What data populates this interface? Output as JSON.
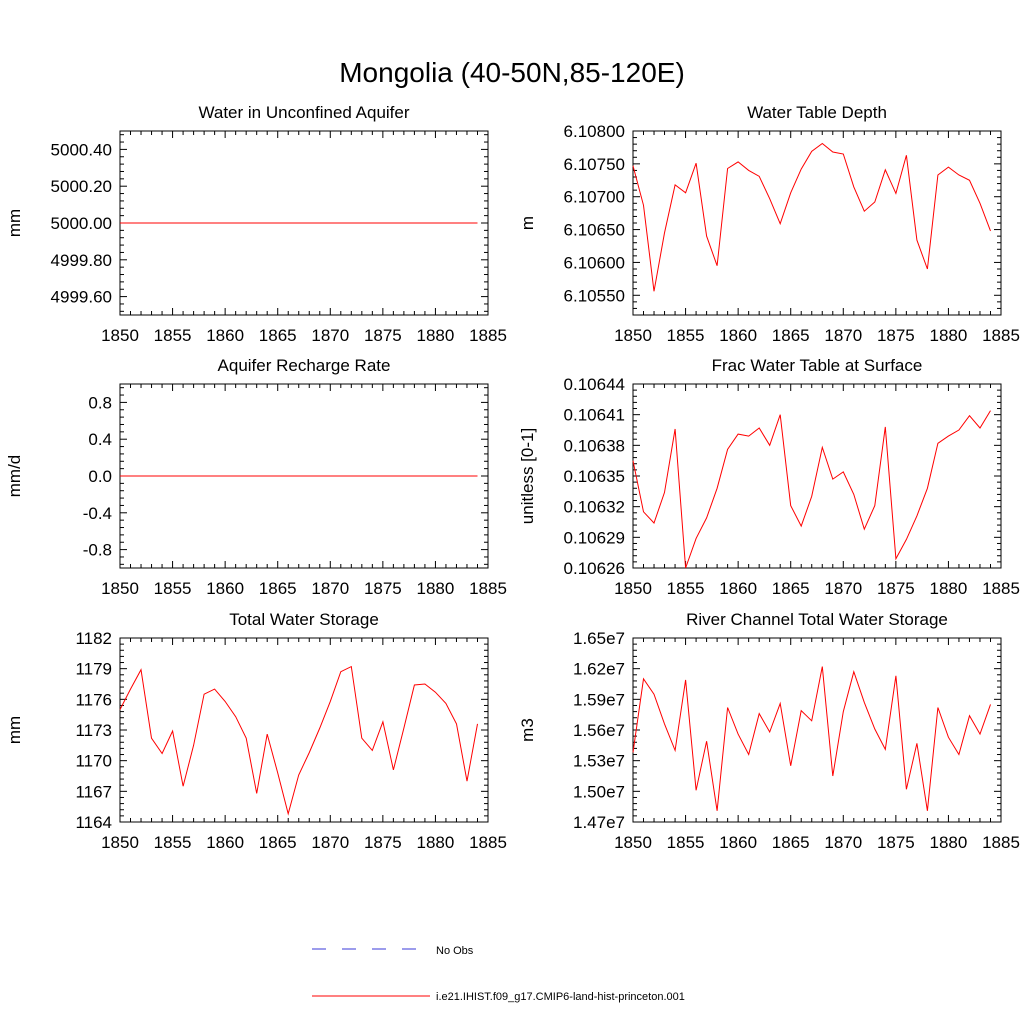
{
  "figure_title": "Mongolia (40-50N,85-120E)",
  "colors": {
    "model": "#ff0000",
    "obs": "#3a3ad8",
    "axis": "#000000"
  },
  "legend": {
    "obs_label": "No Obs",
    "model_label": "i.e21.IHIST.f09_g17.CMIP6-land-hist-princeton.001"
  },
  "chart_data": [
    {
      "type": "line",
      "title": "Water in Unconfined Aquifer",
      "ylabel": "mm",
      "xlim": [
        1850,
        1885
      ],
      "ylim": [
        4999.5,
        5000.5
      ],
      "xticks": [
        1850,
        1855,
        1860,
        1865,
        1870,
        1875,
        1880,
        1885
      ],
      "yticks": [
        4999.6,
        4999.8,
        5000.0,
        5000.2,
        5000.4
      ],
      "ytick_labels": [
        "4999.60",
        "4999.80",
        "5000.00",
        "5000.20",
        "5000.40"
      ],
      "x": [
        1850,
        1851,
        1852,
        1853,
        1854,
        1855,
        1856,
        1857,
        1858,
        1859,
        1860,
        1861,
        1862,
        1863,
        1864,
        1865,
        1866,
        1867,
        1868,
        1869,
        1870,
        1871,
        1872,
        1873,
        1874,
        1875,
        1876,
        1877,
        1878,
        1879,
        1880,
        1881,
        1882,
        1883,
        1884
      ],
      "values": [
        5000,
        5000,
        5000,
        5000,
        5000,
        5000,
        5000,
        5000,
        5000,
        5000,
        5000,
        5000,
        5000,
        5000,
        5000,
        5000,
        5000,
        5000,
        5000,
        5000,
        5000,
        5000,
        5000,
        5000,
        5000,
        5000,
        5000,
        5000,
        5000,
        5000,
        5000,
        5000,
        5000,
        5000,
        5000
      ]
    },
    {
      "type": "line",
      "title": "Water Table Depth",
      "ylabel": "m",
      "xlim": [
        1850,
        1885
      ],
      "ylim": [
        6.1052,
        6.108
      ],
      "xticks": [
        1850,
        1855,
        1860,
        1865,
        1870,
        1875,
        1880,
        1885
      ],
      "yticks": [
        6.1055,
        6.106,
        6.1065,
        6.107,
        6.1075,
        6.108
      ],
      "ytick_labels": [
        "6.10550",
        "6.10600",
        "6.10650",
        "6.10700",
        "6.10750",
        "6.10800"
      ],
      "x": [
        1850,
        1851,
        1852,
        1853,
        1854,
        1855,
        1856,
        1857,
        1858,
        1859,
        1860,
        1861,
        1862,
        1863,
        1864,
        1865,
        1866,
        1867,
        1868,
        1869,
        1870,
        1871,
        1872,
        1873,
        1874,
        1875,
        1876,
        1877,
        1878,
        1879,
        1880,
        1881,
        1882,
        1883,
        1884
      ],
      "values": [
        6.10747,
        6.10687,
        6.10556,
        6.10645,
        6.10718,
        6.10706,
        6.10751,
        6.1064,
        6.10595,
        6.10743,
        6.10753,
        6.1074,
        6.10731,
        6.10697,
        6.10659,
        6.10706,
        6.10742,
        6.10769,
        6.10781,
        6.10768,
        6.10765,
        6.10715,
        6.10678,
        6.10692,
        6.10741,
        6.10705,
        6.10763,
        6.10634,
        6.1059,
        6.10733,
        6.10745,
        6.10733,
        6.10725,
        6.1069,
        6.10648
      ]
    },
    {
      "type": "line",
      "title": "Aquifer Recharge Rate",
      "ylabel": "mm/d",
      "xlim": [
        1850,
        1885
      ],
      "ylim": [
        -1.0,
        1.0
      ],
      "xticks": [
        1850,
        1855,
        1860,
        1865,
        1870,
        1875,
        1880,
        1885
      ],
      "yticks": [
        -0.8,
        -0.4,
        0.0,
        0.4,
        0.8
      ],
      "ytick_labels": [
        "-0.8",
        "-0.4",
        "0.0",
        "0.4",
        "0.8"
      ],
      "x": [
        1850,
        1851,
        1852,
        1853,
        1854,
        1855,
        1856,
        1857,
        1858,
        1859,
        1860,
        1861,
        1862,
        1863,
        1864,
        1865,
        1866,
        1867,
        1868,
        1869,
        1870,
        1871,
        1872,
        1873,
        1874,
        1875,
        1876,
        1877,
        1878,
        1879,
        1880,
        1881,
        1882,
        1883,
        1884
      ],
      "values": [
        0,
        0,
        0,
        0,
        0,
        0,
        0,
        0,
        0,
        0,
        0,
        0,
        0,
        0,
        0,
        0,
        0,
        0,
        0,
        0,
        0,
        0,
        0,
        0,
        0,
        0,
        0,
        0,
        0,
        0,
        0,
        0,
        0,
        0,
        0
      ]
    },
    {
      "type": "line",
      "title": "Frac Water Table at Surface",
      "ylabel": "unitless [0-1]",
      "xlim": [
        1850,
        1885
      ],
      "ylim": [
        0.10626,
        0.10644
      ],
      "xticks": [
        1850,
        1855,
        1860,
        1865,
        1870,
        1875,
        1880,
        1885
      ],
      "yticks": [
        0.10626,
        0.10629,
        0.10632,
        0.10635,
        0.10638,
        0.10641,
        0.10644
      ],
      "ytick_labels": [
        "0.10626",
        "0.10629",
        "0.10632",
        "0.10635",
        "0.10638",
        "0.10641",
        "0.10644"
      ],
      "x": [
        1850,
        1851,
        1852,
        1853,
        1854,
        1855,
        1856,
        1857,
        1858,
        1859,
        1860,
        1861,
        1862,
        1863,
        1864,
        1865,
        1866,
        1867,
        1868,
        1869,
        1870,
        1871,
        1872,
        1873,
        1874,
        1875,
        1876,
        1877,
        1878,
        1879,
        1880,
        1881,
        1882,
        1883,
        1884
      ],
      "values": [
        0.106365,
        0.106315,
        0.106304,
        0.106334,
        0.106396,
        0.10626,
        0.106289,
        0.106309,
        0.106338,
        0.106376,
        0.106391,
        0.106389,
        0.106397,
        0.10638,
        0.10641,
        0.106321,
        0.106301,
        0.10633,
        0.106378,
        0.106347,
        0.106354,
        0.106332,
        0.106298,
        0.106321,
        0.106398,
        0.106269,
        0.106288,
        0.106311,
        0.106338,
        0.106382,
        0.106389,
        0.106395,
        0.106409,
        0.106397,
        0.106414
      ]
    },
    {
      "type": "line",
      "title": "Total Water Storage",
      "ylabel": "mm",
      "xlim": [
        1850,
        1885
      ],
      "ylim": [
        1164,
        1182
      ],
      "xticks": [
        1850,
        1855,
        1860,
        1865,
        1870,
        1875,
        1880,
        1885
      ],
      "yticks": [
        1164,
        1167,
        1170,
        1173,
        1176,
        1179,
        1182
      ],
      "ytick_labels": [
        "1164",
        "1167",
        "1170",
        "1173",
        "1176",
        "1179",
        "1182"
      ],
      "x": [
        1850,
        1851,
        1852,
        1853,
        1854,
        1855,
        1856,
        1857,
        1858,
        1859,
        1860,
        1861,
        1862,
        1863,
        1864,
        1865,
        1866,
        1867,
        1868,
        1869,
        1870,
        1871,
        1872,
        1873,
        1874,
        1875,
        1876,
        1877,
        1878,
        1879,
        1880,
        1881,
        1882,
        1883,
        1884
      ],
      "values": [
        1175.0,
        1177.0,
        1178.9,
        1172.2,
        1170.7,
        1172.9,
        1167.5,
        1171.5,
        1176.5,
        1177.0,
        1175.8,
        1174.3,
        1172.2,
        1166.8,
        1172.6,
        1168.8,
        1164.8,
        1168.6,
        1170.8,
        1173.2,
        1175.8,
        1178.7,
        1179.2,
        1172.2,
        1171.0,
        1173.8,
        1169.1,
        1173.2,
        1177.4,
        1177.5,
        1176.7,
        1175.6,
        1173.6,
        1168.0,
        1173.6
      ]
    },
    {
      "type": "line",
      "title": "River Channel Total Water Storage",
      "ylabel": "m3",
      "xlim": [
        1850,
        1885
      ],
      "ylim": [
        14700000,
        16500000
      ],
      "xticks": [
        1850,
        1855,
        1860,
        1865,
        1870,
        1875,
        1880,
        1885
      ],
      "yticks": [
        14700000,
        15000000,
        15300000,
        15600000,
        15900000,
        16200000,
        16500000
      ],
      "ytick_labels": [
        "1.47e7",
        "1.50e7",
        "1.53e7",
        "1.56e7",
        "1.59e7",
        "1.62e7",
        "1.65e7"
      ],
      "x": [
        1850,
        1851,
        1852,
        1853,
        1854,
        1855,
        1856,
        1857,
        1858,
        1859,
        1860,
        1861,
        1862,
        1863,
        1864,
        1865,
        1866,
        1867,
        1868,
        1869,
        1870,
        1871,
        1872,
        1873,
        1874,
        1875,
        1876,
        1877,
        1878,
        1879,
        1880,
        1881,
        1882,
        1883,
        1884
      ],
      "values": [
        15380000,
        16100000,
        15950000,
        15660000,
        15400000,
        16090000,
        15010000,
        15490000,
        14810000,
        15820000,
        15560000,
        15360000,
        15760000,
        15580000,
        15860000,
        15250000,
        15790000,
        15690000,
        16220000,
        15150000,
        15780000,
        16170000,
        15870000,
        15610000,
        15410000,
        16130000,
        15020000,
        15470000,
        14810000,
        15820000,
        15530000,
        15360000,
        15740000,
        15560000,
        15850000
      ]
    }
  ]
}
